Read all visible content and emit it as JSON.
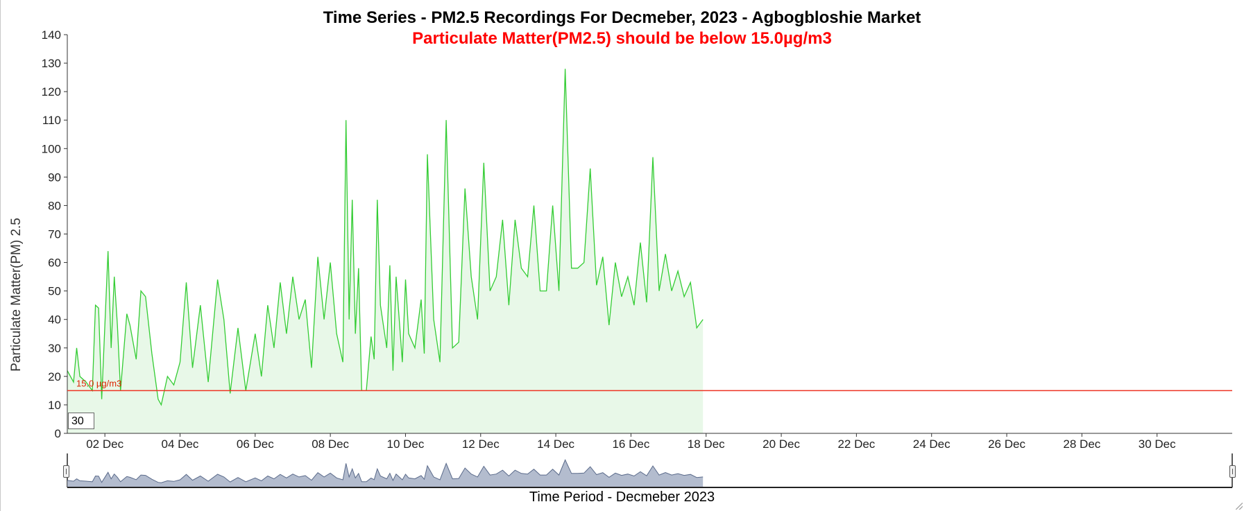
{
  "chart": {
    "title": "Time Series - PM2.5 Recordings For Decmeber, 2023 - Agbogbloshie Market",
    "subtitle": "Particulate Matter(PM2.5) should be below 15.0µg/m3",
    "xlabel": "Time Period - Decmeber 2023",
    "ylabel": "Particulate Matter(PM) 2.5",
    "threshold_label": "15.0 µg/m3",
    "period_value": "30"
  },
  "colors": {
    "series_line": "#33cc33",
    "series_fill": "#e8f8e8",
    "threshold": "#ee3322",
    "navigator_line": "#5a6a8a",
    "navigator_fill": "#a6b0c6"
  },
  "chart_data": {
    "type": "area",
    "title": "Time Series - PM2.5 Recordings For Decmeber, 2023 - Agbogbloshie Market",
    "subtitle": "Particulate Matter(PM2.5) should be below 15.0µg/m3",
    "xlabel": "Time Period - Decmeber 2023",
    "ylabel": "Particulate Matter(PM) 2.5",
    "ylim": [
      0,
      140
    ],
    "xlim": [
      "2023-12-01",
      "2024-01-01"
    ],
    "yticks": [
      0,
      10,
      20,
      30,
      40,
      50,
      60,
      70,
      80,
      90,
      100,
      110,
      120,
      130,
      140
    ],
    "xticks": [
      "02 Dec",
      "04 Dec",
      "06 Dec",
      "08 Dec",
      "10 Dec",
      "12 Dec",
      "14 Dec",
      "16 Dec",
      "18 Dec",
      "20 Dec",
      "22 Dec",
      "24 Dec",
      "26 Dec",
      "28 Dec",
      "30 Dec"
    ],
    "grid": false,
    "threshold": {
      "value": 15,
      "label": "15.0 µg/m3"
    },
    "series": [
      {
        "values": [
          [
            "2023-12-01 00:00",
            22
          ],
          [
            "2023-12-01 04:00",
            18
          ],
          [
            "2023-12-01 06:00",
            30
          ],
          [
            "2023-12-01 08:00",
            20
          ],
          [
            "2023-12-01 12:00",
            18
          ],
          [
            "2023-12-01 16:00",
            15
          ],
          [
            "2023-12-01 18:00",
            45
          ],
          [
            "2023-12-01 20:00",
            44
          ],
          [
            "2023-12-01 22:00",
            12
          ],
          [
            "2023-12-02 02:00",
            64
          ],
          [
            "2023-12-02 04:00",
            30
          ],
          [
            "2023-12-02 06:00",
            55
          ],
          [
            "2023-12-02 08:00",
            38
          ],
          [
            "2023-12-02 10:00",
            15
          ],
          [
            "2023-12-02 14:00",
            42
          ],
          [
            "2023-12-02 16:00",
            38
          ],
          [
            "2023-12-02 20:00",
            26
          ],
          [
            "2023-12-02 23:00",
            50
          ],
          [
            "2023-12-03 02:00",
            48
          ],
          [
            "2023-12-03 06:00",
            28
          ],
          [
            "2023-12-03 10:00",
            12
          ],
          [
            "2023-12-03 12:00",
            10
          ],
          [
            "2023-12-03 16:00",
            20
          ],
          [
            "2023-12-03 20:00",
            17
          ],
          [
            "2023-12-04 00:00",
            25
          ],
          [
            "2023-12-04 04:00",
            53
          ],
          [
            "2023-12-04 08:00",
            23
          ],
          [
            "2023-12-04 13:00",
            45
          ],
          [
            "2023-12-04 18:00",
            18
          ],
          [
            "2023-12-05 00:00",
            54
          ],
          [
            "2023-12-05 04:00",
            40
          ],
          [
            "2023-12-05 08:00",
            14
          ],
          [
            "2023-12-05 13:00",
            37
          ],
          [
            "2023-12-05 18:00",
            15
          ],
          [
            "2023-12-06 00:00",
            35
          ],
          [
            "2023-12-06 04:00",
            20
          ],
          [
            "2023-12-06 08:00",
            45
          ],
          [
            "2023-12-06 12:00",
            30
          ],
          [
            "2023-12-06 16:00",
            53
          ],
          [
            "2023-12-06 20:00",
            35
          ],
          [
            "2023-12-07 00:00",
            55
          ],
          [
            "2023-12-07 04:00",
            40
          ],
          [
            "2023-12-07 08:00",
            47
          ],
          [
            "2023-12-07 12:00",
            23
          ],
          [
            "2023-12-07 16:00",
            62
          ],
          [
            "2023-12-07 20:00",
            40
          ],
          [
            "2023-12-08 00:00",
            60
          ],
          [
            "2023-12-08 04:00",
            35
          ],
          [
            "2023-12-08 08:00",
            25
          ],
          [
            "2023-12-08 10:00",
            110
          ],
          [
            "2023-12-08 12:00",
            40
          ],
          [
            "2023-12-08 14:00",
            82
          ],
          [
            "2023-12-08 16:00",
            35
          ],
          [
            "2023-12-08 18:00",
            58
          ],
          [
            "2023-12-08 20:00",
            15
          ],
          [
            "2023-12-08 23:00",
            15
          ],
          [
            "2023-12-09 02:00",
            34
          ],
          [
            "2023-12-09 04:00",
            26
          ],
          [
            "2023-12-09 06:00",
            82
          ],
          [
            "2023-12-09 08:00",
            45
          ],
          [
            "2023-12-09 12:00",
            30
          ],
          [
            "2023-12-09 14:00",
            59
          ],
          [
            "2023-12-09 16:00",
            22
          ],
          [
            "2023-12-09 18:00",
            55
          ],
          [
            "2023-12-09 22:00",
            25
          ],
          [
            "2023-12-10 00:00",
            54
          ],
          [
            "2023-12-10 02:00",
            35
          ],
          [
            "2023-12-10 06:00",
            30
          ],
          [
            "2023-12-10 10:00",
            47
          ],
          [
            "2023-12-10 12:00",
            28
          ],
          [
            "2023-12-10 14:00",
            98
          ],
          [
            "2023-12-10 18:00",
            40
          ],
          [
            "2023-12-10 22:00",
            25
          ],
          [
            "2023-12-11 02:00",
            110
          ],
          [
            "2023-12-11 06:00",
            30
          ],
          [
            "2023-12-11 10:00",
            32
          ],
          [
            "2023-12-11 14:00",
            86
          ],
          [
            "2023-12-11 18:00",
            55
          ],
          [
            "2023-12-11 22:00",
            40
          ],
          [
            "2023-12-12 02:00",
            95
          ],
          [
            "2023-12-12 06:00",
            50
          ],
          [
            "2023-12-12 10:00",
            55
          ],
          [
            "2023-12-12 14:00",
            75
          ],
          [
            "2023-12-12 18:00",
            45
          ],
          [
            "2023-12-12 22:00",
            75
          ],
          [
            "2023-12-13 02:00",
            58
          ],
          [
            "2023-12-13 06:00",
            55
          ],
          [
            "2023-12-13 10:00",
            80
          ],
          [
            "2023-12-13 14:00",
            50
          ],
          [
            "2023-12-13 18:00",
            50
          ],
          [
            "2023-12-13 22:00",
            80
          ],
          [
            "2023-12-14 02:00",
            50
          ],
          [
            "2023-12-14 06:00",
            128
          ],
          [
            "2023-12-14 10:00",
            58
          ],
          [
            "2023-12-14 14:00",
            58
          ],
          [
            "2023-12-14 18:00",
            60
          ],
          [
            "2023-12-14 22:00",
            93
          ],
          [
            "2023-12-15 02:00",
            52
          ],
          [
            "2023-12-15 06:00",
            62
          ],
          [
            "2023-12-15 10:00",
            38
          ],
          [
            "2023-12-15 14:00",
            60
          ],
          [
            "2023-12-15 18:00",
            48
          ],
          [
            "2023-12-15 22:00",
            55
          ],
          [
            "2023-12-16 02:00",
            45
          ],
          [
            "2023-12-16 06:00",
            67
          ],
          [
            "2023-12-16 10:00",
            46
          ],
          [
            "2023-12-16 14:00",
            97
          ],
          [
            "2023-12-16 18:00",
            50
          ],
          [
            "2023-12-16 22:00",
            63
          ],
          [
            "2023-12-17 02:00",
            50
          ],
          [
            "2023-12-17 06:00",
            57
          ],
          [
            "2023-12-17 10:00",
            48
          ],
          [
            "2023-12-17 14:00",
            53
          ],
          [
            "2023-12-17 18:00",
            37
          ],
          [
            "2023-12-17 22:00",
            40
          ]
        ]
      }
    ]
  }
}
